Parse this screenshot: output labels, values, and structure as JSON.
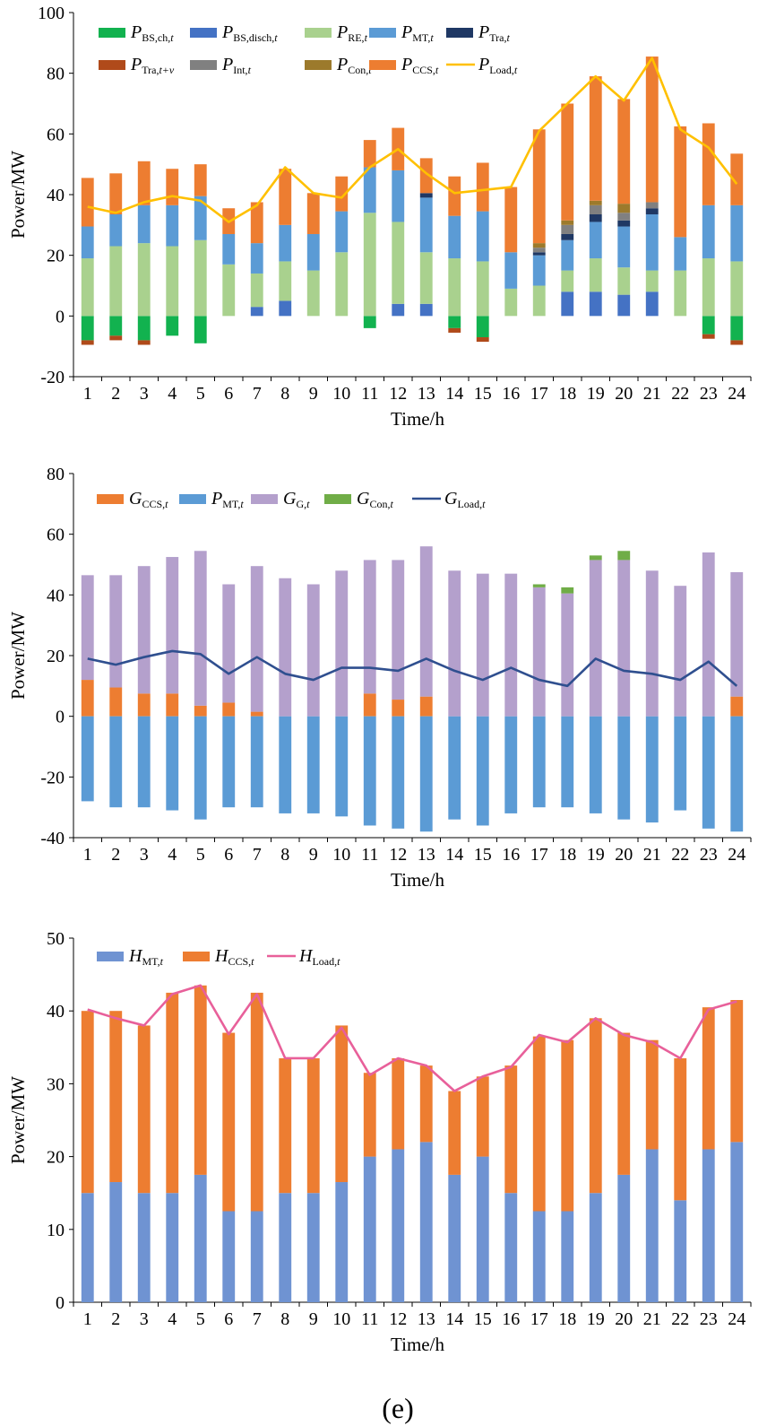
{
  "caption": "(e)",
  "chart_data": [
    {
      "type": "bar",
      "stacked": true,
      "xlabel": "Time/h",
      "ylabel": "Power/MW",
      "ylim": [
        -20,
        100
      ],
      "yticks": [
        -20,
        0,
        20,
        40,
        60,
        80,
        100
      ],
      "categories": [
        "1",
        "2",
        "3",
        "4",
        "5",
        "6",
        "7",
        "8",
        "9",
        "10",
        "11",
        "12",
        "13",
        "14",
        "15",
        "16",
        "17",
        "18",
        "19",
        "20",
        "21",
        "22",
        "23",
        "24"
      ],
      "legend": [
        {
          "main": "P",
          "sub": "BS,ch,",
          "subi": "t",
          "color": "#12b24f",
          "kind": "bar"
        },
        {
          "main": "P",
          "sub": "BS,disch,",
          "subi": "t",
          "color": "#4472c4",
          "kind": "bar"
        },
        {
          "main": "P",
          "sub": "RE,",
          "subi": "t",
          "color": "#a9d18e",
          "kind": "bar"
        },
        {
          "main": "P",
          "sub": "MT,",
          "subi": "t",
          "color": "#5b9bd5",
          "kind": "bar"
        },
        {
          "main": "P",
          "sub": "Tra,",
          "subi": "t",
          "color": "#1f3864",
          "kind": "bar"
        },
        {
          "main": "P",
          "sub": "Tra,",
          "subi": "t+v",
          "color": "#b04a1a",
          "kind": "bar"
        },
        {
          "main": "P",
          "sub": "Int,",
          "subi": "t",
          "color": "#808080",
          "kind": "bar"
        },
        {
          "main": "P",
          "sub": "Con,",
          "subi": "t",
          "color": "#9c7a2c",
          "kind": "bar"
        },
        {
          "main": "P",
          "sub": "CCS,",
          "subi": "t",
          "color": "#ed7d31",
          "kind": "bar"
        },
        {
          "main": "P",
          "sub": "Load,",
          "subi": "t",
          "color": "#ffc000",
          "kind": "line"
        }
      ],
      "series": [
        {
          "name": "PBS,ch",
          "color": "#12b24f",
          "values": [
            -8,
            -6.5,
            -8,
            -6.5,
            -9,
            0,
            0,
            0,
            0,
            0,
            -4,
            0,
            0,
            -4,
            -7,
            0,
            0,
            0,
            0,
            0,
            0,
            0,
            -6,
            -8
          ]
        },
        {
          "name": "PBS,disch",
          "color": "#4472c4",
          "values": [
            0,
            0,
            0,
            0,
            0,
            0,
            3,
            5,
            0,
            0,
            0,
            4,
            4,
            0,
            0,
            0,
            0,
            8,
            8,
            7,
            8,
            0,
            0,
            0
          ]
        },
        {
          "name": "PRE",
          "color": "#a9d18e",
          "values": [
            19,
            23,
            24,
            23,
            25,
            17,
            11,
            13,
            15,
            21,
            34,
            27,
            17,
            19,
            18,
            9,
            10,
            7,
            11,
            9,
            7,
            15,
            19,
            18
          ]
        },
        {
          "name": "PMT",
          "color": "#5b9bd5",
          "values": [
            10.5,
            10.5,
            12.5,
            13.5,
            14.5,
            10,
            10,
            12,
            12,
            13.5,
            15,
            17,
            18,
            14,
            16.5,
            12,
            10,
            10,
            12,
            13.5,
            18.5,
            11,
            17.5,
            18.5
          ]
        },
        {
          "name": "PTra",
          "color": "#1f3864",
          "values": [
            0,
            0,
            0,
            0,
            0,
            0,
            0,
            0,
            0,
            0,
            0,
            0,
            1.5,
            0,
            0,
            0,
            1,
            2,
            2.5,
            2,
            2,
            0,
            0,
            0
          ]
        },
        {
          "name": "PTra,t+v",
          "color": "#b04a1a",
          "values": [
            -1.5,
            -1.5,
            -1.5,
            0,
            0,
            0,
            0,
            0,
            0,
            0,
            0,
            0,
            0,
            -1.5,
            -1.5,
            0,
            0,
            0,
            0,
            0,
            0,
            0,
            -1.5,
            -1.5
          ]
        },
        {
          "name": "PInt",
          "color": "#808080",
          "values": [
            0,
            0,
            0,
            0,
            0,
            0,
            0,
            0,
            0,
            0,
            0,
            0,
            0,
            0,
            0,
            0,
            1.5,
            3,
            3,
            2.5,
            2,
            0,
            0,
            0
          ]
        },
        {
          "name": "PCon",
          "color": "#9c7a2c",
          "values": [
            0,
            0,
            0,
            0,
            0,
            0,
            0,
            0,
            0,
            0,
            0,
            0,
            0,
            0,
            0,
            0,
            1.5,
            1.5,
            1.5,
            3,
            0,
            0,
            0,
            0
          ]
        },
        {
          "name": "PCCS",
          "color": "#ed7d31",
          "values": [
            16,
            13.5,
            14.5,
            12,
            10.5,
            8.5,
            13.5,
            18.5,
            13.5,
            11.5,
            9,
            14,
            11.5,
            13,
            16,
            21.5,
            37.5,
            38.5,
            41,
            34.5,
            48,
            36.5,
            27,
            17
          ]
        }
      ],
      "lines": [
        {
          "name": "PLoad",
          "color": "#ffc000",
          "values": [
            36,
            34,
            37.5,
            39.5,
            38,
            31,
            36.5,
            49,
            40.5,
            39,
            49,
            55,
            47,
            40.5,
            41.5,
            42.5,
            61,
            70,
            79,
            71,
            85,
            61.5,
            55.5,
            43.5
          ]
        }
      ]
    },
    {
      "type": "bar",
      "stacked": true,
      "xlabel": "Time/h",
      "ylabel": "Power/MW",
      "ylim": [
        -40,
        80
      ],
      "yticks": [
        -40,
        -20,
        0,
        20,
        40,
        60,
        80
      ],
      "categories": [
        "1",
        "2",
        "3",
        "4",
        "5",
        "6",
        "7",
        "8",
        "9",
        "10",
        "11",
        "12",
        "13",
        "14",
        "15",
        "16",
        "17",
        "18",
        "19",
        "20",
        "21",
        "22",
        "23",
        "24"
      ],
      "legend": [
        {
          "main": "G",
          "sub": "CCS,",
          "subi": "t",
          "color": "#ed7d31",
          "kind": "bar"
        },
        {
          "main": "P",
          "sub": "MT,",
          "subi": "t",
          "color": "#5b9bd5",
          "kind": "bar"
        },
        {
          "main": "G",
          "sub": "G,",
          "subi": "t",
          "color": "#b4a0cc",
          "kind": "bar"
        },
        {
          "main": "G",
          "sub": "Con,",
          "subi": "t",
          "color": "#70ad47",
          "kind": "bar"
        },
        {
          "main": "G",
          "sub": "Load,",
          "subi": "t",
          "color": "#2f4f8f",
          "kind": "line"
        }
      ],
      "series": [
        {
          "name": "GCCS",
          "color": "#ed7d31",
          "values": [
            12,
            9.5,
            7.5,
            7.5,
            3.5,
            4.5,
            1.5,
            0,
            0,
            0,
            7.5,
            5.5,
            6.5,
            0,
            0,
            0,
            0,
            0,
            0,
            0,
            0,
            0,
            0,
            6.5
          ]
        },
        {
          "name": "PMT",
          "color": "#5b9bd5",
          "values": [
            -28,
            -30,
            -30,
            -31,
            -34,
            -30,
            -30,
            -32,
            -32,
            -33,
            -36,
            -37,
            -38,
            -34,
            -36,
            -32,
            -30,
            -30,
            -32,
            -34,
            -35,
            -31,
            -37,
            -38
          ]
        },
        {
          "name": "GG",
          "color": "#b4a0cc",
          "values": [
            34.5,
            37,
            42,
            45,
            51,
            39,
            48,
            45.5,
            43.5,
            48,
            44,
            46,
            49.5,
            48,
            47,
            47,
            42.5,
            40.5,
            51.5,
            51.5,
            48,
            43,
            54,
            41
          ]
        },
        {
          "name": "GCon",
          "color": "#70ad47",
          "values": [
            0,
            0,
            0,
            0,
            0,
            0,
            0,
            0,
            0,
            0,
            0,
            0,
            0,
            0,
            0,
            0,
            1,
            2,
            1.5,
            3,
            0,
            0,
            0,
            0
          ]
        }
      ],
      "lines": [
        {
          "name": "GLoad",
          "color": "#2f4f8f",
          "values": [
            19,
            17,
            19.5,
            21.5,
            20.5,
            14,
            19.5,
            14,
            12,
            16,
            16,
            15,
            19,
            15,
            12,
            16,
            12,
            10,
            19,
            15,
            14,
            12,
            18,
            10
          ]
        }
      ]
    },
    {
      "type": "bar",
      "stacked": true,
      "xlabel": "Time/h",
      "ylabel": "Power/MW",
      "ylim": [
        0,
        50
      ],
      "yticks": [
        0,
        10,
        20,
        30,
        40,
        50
      ],
      "categories": [
        "1",
        "2",
        "3",
        "4",
        "5",
        "6",
        "7",
        "8",
        "9",
        "10",
        "11",
        "12",
        "13",
        "14",
        "15",
        "16",
        "17",
        "18",
        "19",
        "20",
        "21",
        "22",
        "23",
        "24"
      ],
      "legend": [
        {
          "main": "H",
          "sub": "MT,",
          "subi": "t",
          "color": "#6f93d2",
          "kind": "bar"
        },
        {
          "main": "H",
          "sub": "CCS,",
          "subi": "t",
          "color": "#ed7d31",
          "kind": "bar"
        },
        {
          "main": "H",
          "sub": "Load,",
          "subi": "t",
          "color": "#e8609a",
          "kind": "line"
        }
      ],
      "series": [
        {
          "name": "HMT",
          "color": "#6f93d2",
          "values": [
            15,
            16.5,
            15,
            15,
            17.5,
            12.5,
            12.5,
            15,
            15,
            16.5,
            20,
            21,
            22,
            17.5,
            20,
            15,
            12.5,
            12.5,
            15,
            17.5,
            21,
            14,
            21,
            22
          ]
        },
        {
          "name": "HCCS",
          "color": "#ed7d31",
          "values": [
            25,
            23.5,
            23,
            27.5,
            26,
            24.5,
            30,
            18.5,
            18.5,
            21.5,
            11.5,
            12.5,
            10.5,
            11.5,
            11,
            17.5,
            24,
            23.5,
            24,
            19.5,
            15,
            19.5,
            19.5,
            19.5
          ]
        }
      ],
      "lines": [
        {
          "name": "HLoad",
          "color": "#e8609a",
          "values": [
            40.2,
            39,
            38,
            42.3,
            43.5,
            36.8,
            42.3,
            33.5,
            33.5,
            37.7,
            31.2,
            33.5,
            32.5,
            29,
            31,
            32.3,
            36.7,
            35.7,
            39,
            36.7,
            35.7,
            33.5,
            40.2,
            41.3
          ]
        }
      ]
    }
  ]
}
